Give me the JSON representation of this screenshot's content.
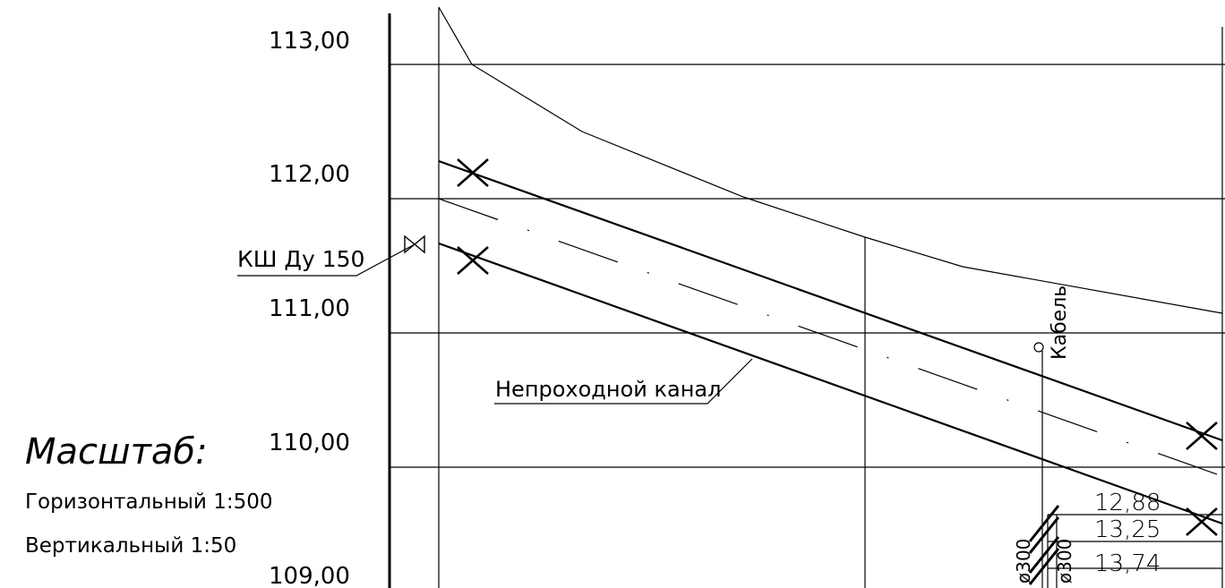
{
  "y_axis": {
    "ticks": [
      "113,00",
      "112,00",
      "111,00",
      "110,00",
      "109,00"
    ]
  },
  "labels": {
    "valve": "КШ Ду 150",
    "channel": "Непроходной канал",
    "cable": "Кабель"
  },
  "scale": {
    "title": "Масштаб:",
    "horizontal": "Горизонтальный 1:500",
    "vertical": "Вертикальный 1:50"
  },
  "pipe_markers": {
    "diameter_1": "ø300",
    "diameter_2": "ø300",
    "elevations": [
      "12,88",
      "13,25",
      "13,74"
    ]
  }
}
